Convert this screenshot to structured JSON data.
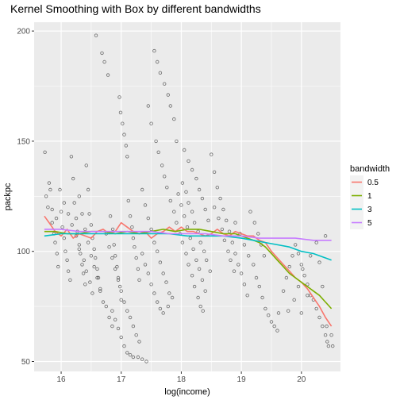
{
  "chart_data": {
    "type": "scatter",
    "title": "Kernel Smoothing with Box by different bandwidths",
    "xlabel": "log(income)",
    "ylabel": "packpc",
    "xlim": [
      15.55,
      20.65
    ],
    "ylim": [
      45.5,
      204
    ],
    "x_ticks": [
      "16",
      "17",
      "18",
      "19",
      "20"
    ],
    "x_tick_values": [
      16,
      17,
      18,
      19,
      20
    ],
    "y_ticks": [
      "50",
      "100",
      "150",
      "200"
    ],
    "y_tick_values": [
      50,
      100,
      150,
      200
    ],
    "grid": true,
    "legend": {
      "title": "bandwidth",
      "position": "right"
    },
    "points": [
      [
        15.73,
        145
      ],
      [
        15.75,
        125
      ],
      [
        15.78,
        120
      ],
      [
        15.8,
        131
      ],
      [
        15.82,
        128
      ],
      [
        15.85,
        113
      ],
      [
        15.88,
        108
      ],
      [
        15.9,
        104
      ],
      [
        15.93,
        99
      ],
      [
        15.95,
        93
      ],
      [
        15.98,
        128
      ],
      [
        16.0,
        118
      ],
      [
        16.02,
        111
      ],
      [
        16.05,
        106
      ],
      [
        16.07,
        100
      ],
      [
        16.1,
        96
      ],
      [
        16.12,
        91
      ],
      [
        16.15,
        87
      ],
      [
        16.17,
        143
      ],
      [
        16.2,
        133
      ],
      [
        16.22,
        122
      ],
      [
        16.25,
        115
      ],
      [
        16.27,
        109
      ],
      [
        16.3,
        103
      ],
      [
        16.32,
        99
      ],
      [
        16.35,
        94
      ],
      [
        16.37,
        90
      ],
      [
        16.4,
        85
      ],
      [
        16.42,
        139
      ],
      [
        16.45,
        128
      ],
      [
        16.47,
        117
      ],
      [
        16.5,
        112
      ],
      [
        16.52,
        106
      ],
      [
        16.55,
        101
      ],
      [
        16.57,
        97
      ],
      [
        16.6,
        92
      ],
      [
        16.62,
        88
      ],
      [
        16.65,
        83
      ],
      [
        16.58,
        198
      ],
      [
        16.68,
        190
      ],
      [
        16.72,
        186
      ],
      [
        16.78,
        180
      ],
      [
        16.82,
        116
      ],
      [
        16.86,
        110
      ],
      [
        16.88,
        103
      ],
      [
        16.9,
        98
      ],
      [
        16.93,
        93
      ],
      [
        16.95,
        88
      ],
      [
        16.98,
        84
      ],
      [
        17.0,
        78
      ],
      [
        16.97,
        170
      ],
      [
        16.99,
        163
      ],
      [
        17.02,
        158
      ],
      [
        17.05,
        153
      ],
      [
        17.08,
        148
      ],
      [
        17.1,
        143
      ],
      [
        17.12,
        123
      ],
      [
        17.15,
        116
      ],
      [
        17.18,
        111
      ],
      [
        17.2,
        106
      ],
      [
        17.22,
        102
      ],
      [
        17.25,
        97
      ],
      [
        17.28,
        92
      ],
      [
        17.3,
        87
      ],
      [
        16.85,
        73
      ],
      [
        16.9,
        69
      ],
      [
        16.95,
        65
      ],
      [
        17.0,
        61
      ],
      [
        17.05,
        57
      ],
      [
        17.1,
        54
      ],
      [
        17.15,
        53
      ],
      [
        17.2,
        52
      ],
      [
        17.28,
        52
      ],
      [
        17.35,
        51
      ],
      [
        17.42,
        50
      ],
      [
        16.75,
        75
      ],
      [
        16.8,
        70
      ],
      [
        16.85,
        66
      ],
      [
        17.35,
        128
      ],
      [
        17.4,
        121
      ],
      [
        17.45,
        115
      ],
      [
        17.5,
        110
      ],
      [
        17.55,
        104
      ],
      [
        17.6,
        100
      ],
      [
        17.65,
        95
      ],
      [
        17.7,
        90
      ],
      [
        17.75,
        86
      ],
      [
        17.8,
        81
      ],
      [
        17.55,
        191
      ],
      [
        17.6,
        186
      ],
      [
        17.65,
        181
      ],
      [
        17.72,
        176
      ],
      [
        17.78,
        171
      ],
      [
        17.82,
        166
      ],
      [
        17.88,
        160
      ],
      [
        17.92,
        150
      ],
      [
        17.95,
        126
      ],
      [
        18.0,
        121
      ],
      [
        18.05,
        116
      ],
      [
        18.1,
        111
      ],
      [
        18.15,
        106
      ],
      [
        18.2,
        101
      ],
      [
        18.25,
        96
      ],
      [
        18.3,
        92
      ],
      [
        18.35,
        87
      ],
      [
        18.4,
        82
      ],
      [
        18.02,
        131
      ],
      [
        18.08,
        127
      ],
      [
        18.12,
        122
      ],
      [
        18.18,
        118
      ],
      [
        18.22,
        113
      ],
      [
        18.28,
        109
      ],
      [
        18.32,
        104
      ],
      [
        18.38,
        100
      ],
      [
        18.42,
        96
      ],
      [
        18.48,
        91
      ],
      [
        18.5,
        144
      ],
      [
        18.55,
        136
      ],
      [
        18.6,
        129
      ],
      [
        18.65,
        124
      ],
      [
        18.7,
        119
      ],
      [
        18.75,
        114
      ],
      [
        18.8,
        109
      ],
      [
        18.85,
        104
      ],
      [
        18.9,
        99
      ],
      [
        18.95,
        94
      ],
      [
        19.0,
        90
      ],
      [
        19.05,
        85
      ],
      [
        19.1,
        80
      ],
      [
        18.9,
        113
      ],
      [
        18.98,
        108
      ],
      [
        19.05,
        103
      ],
      [
        19.12,
        98
      ],
      [
        19.2,
        94
      ],
      [
        19.25,
        88
      ],
      [
        19.3,
        84
      ],
      [
        19.35,
        79
      ],
      [
        19.4,
        74
      ],
      [
        19.45,
        71
      ],
      [
        19.5,
        68
      ],
      [
        19.55,
        66
      ],
      [
        19.6,
        64
      ],
      [
        19.62,
        72
      ],
      [
        19.7,
        82
      ],
      [
        19.75,
        88
      ],
      [
        19.8,
        93
      ],
      [
        19.85,
        98
      ],
      [
        19.9,
        103
      ],
      [
        19.95,
        99
      ],
      [
        20.0,
        94
      ],
      [
        20.05,
        89
      ],
      [
        20.1,
        85
      ],
      [
        20.15,
        80
      ],
      [
        20.2,
        78
      ],
      [
        20.25,
        74
      ],
      [
        20.3,
        70
      ],
      [
        20.35,
        66
      ],
      [
        20.4,
        62
      ],
      [
        20.43,
        59
      ],
      [
        20.45,
        57
      ],
      [
        20.0,
        72
      ],
      [
        20.1,
        80
      ],
      [
        20.3,
        95
      ],
      [
        20.4,
        107
      ],
      [
        20.5,
        62
      ],
      [
        20.52,
        57
      ],
      [
        19.78,
        73
      ],
      [
        19.88,
        78
      ],
      [
        19.95,
        84
      ],
      [
        20.02,
        92
      ],
      [
        20.15,
        98
      ],
      [
        20.25,
        104
      ],
      [
        20.35,
        84
      ],
      [
        20.42,
        66
      ],
      [
        19.15,
        118
      ],
      [
        19.22,
        113
      ],
      [
        19.28,
        108
      ],
      [
        19.33,
        103
      ],
      [
        19.38,
        98
      ],
      [
        17.45,
        166
      ],
      [
        17.5,
        158
      ],
      [
        17.58,
        150
      ],
      [
        17.62,
        145
      ],
      [
        17.68,
        139
      ],
      [
        17.72,
        134
      ],
      [
        17.76,
        129
      ],
      [
        16.3,
        125
      ],
      [
        16.35,
        117
      ],
      [
        16.4,
        110
      ],
      [
        16.45,
        104
      ],
      [
        16.5,
        98
      ],
      [
        16.55,
        93
      ],
      [
        16.6,
        88
      ],
      [
        16.65,
        82
      ],
      [
        16.7,
        77
      ],
      [
        16.75,
        108
      ],
      [
        16.8,
        102
      ],
      [
        16.85,
        97
      ],
      [
        16.9,
        92
      ],
      [
        16.95,
        87
      ],
      [
        17.0,
        82
      ],
      [
        17.05,
        77
      ],
      [
        17.1,
        73
      ],
      [
        17.15,
        70
      ],
      [
        17.2,
        66
      ],
      [
        17.25,
        62
      ],
      [
        17.3,
        59
      ],
      [
        15.85,
        119
      ],
      [
        15.92,
        115
      ],
      [
        16.05,
        122
      ],
      [
        16.12,
        117
      ],
      [
        16.18,
        112
      ],
      [
        16.25,
        107
      ],
      [
        16.3,
        101
      ],
      [
        16.38,
        96
      ],
      [
        16.42,
        91
      ],
      [
        16.48,
        86
      ],
      [
        16.52,
        81
      ],
      [
        18.05,
        146
      ],
      [
        18.12,
        141
      ],
      [
        18.18,
        137
      ],
      [
        18.25,
        133
      ],
      [
        18.3,
        128
      ],
      [
        18.35,
        124
      ],
      [
        18.4,
        119
      ],
      [
        18.45,
        114
      ],
      [
        18.55,
        120
      ],
      [
        18.62,
        115
      ],
      [
        18.68,
        110
      ],
      [
        18.72,
        105
      ],
      [
        18.78,
        100
      ],
      [
        18.82,
        96
      ],
      [
        18.88,
        91
      ],
      [
        17.82,
        123
      ],
      [
        17.88,
        118
      ],
      [
        17.92,
        113
      ],
      [
        17.98,
        108
      ],
      [
        18.02,
        104
      ],
      [
        18.08,
        99
      ],
      [
        18.12,
        94
      ],
      [
        18.18,
        89
      ],
      [
        18.22,
        84
      ],
      [
        18.28,
        79
      ],
      [
        18.32,
        75
      ],
      [
        18.36,
        73
      ],
      [
        17.35,
        99
      ],
      [
        17.4,
        94
      ],
      [
        17.45,
        90
      ],
      [
        17.5,
        85
      ],
      [
        17.55,
        81
      ],
      [
        17.6,
        77
      ],
      [
        17.65,
        74
      ],
      [
        17.7,
        72
      ],
      [
        17.78,
        75
      ],
      [
        17.85,
        79
      ]
    ],
    "series": [
      {
        "name": "0.5",
        "color": "#F8766D",
        "x": [
          15.72,
          15.8,
          15.9,
          16.0,
          16.1,
          16.2,
          16.3,
          16.4,
          16.5,
          16.6,
          16.7,
          16.8,
          16.9,
          17.0,
          17.1,
          17.2,
          17.3,
          17.4,
          17.5,
          17.6,
          17.7,
          17.8,
          17.9,
          18.0,
          18.1,
          18.2,
          18.3,
          18.4,
          18.5,
          18.6,
          18.7,
          18.8,
          18.9,
          19.0,
          19.1,
          19.2,
          19.3,
          19.4,
          19.5,
          19.6,
          19.7,
          19.8,
          19.9,
          20.0,
          20.1,
          20.2,
          20.3,
          20.4,
          20.5
        ],
        "y": [
          116,
          113,
          109,
          107,
          110,
          106,
          108,
          107,
          106,
          109,
          110,
          108,
          109,
          113,
          111,
          109,
          108,
          109,
          106,
          108,
          109,
          111,
          109,
          111,
          109,
          109,
          108,
          107,
          108,
          110,
          108,
          107,
          109,
          108,
          107,
          107,
          105,
          104,
          100,
          97,
          94,
          91,
          88,
          86,
          83,
          79,
          75,
          70,
          66
        ]
      },
      {
        "name": "1",
        "color": "#7CAE00",
        "x": [
          15.72,
          15.9,
          16.1,
          16.3,
          16.5,
          16.7,
          16.9,
          17.1,
          17.3,
          17.5,
          17.7,
          17.9,
          18.1,
          18.3,
          18.5,
          18.7,
          18.9,
          19.0,
          19.1,
          19.2,
          19.3,
          19.4,
          19.5,
          19.6,
          19.7,
          19.8,
          19.9,
          20.0,
          20.1,
          20.2,
          20.3,
          20.4,
          20.5
        ],
        "y": [
          109,
          109,
          108,
          108,
          109,
          109,
          108,
          109,
          108,
          109,
          110,
          109,
          110,
          110,
          109,
          108,
          108,
          107,
          106,
          105,
          104,
          102,
          99,
          96,
          93,
          90,
          88,
          86,
          84,
          82,
          80,
          77,
          74
        ]
      },
      {
        "name": "3",
        "color": "#00BFC4",
        "x": [
          15.72,
          16.0,
          16.3,
          16.6,
          16.9,
          17.2,
          17.5,
          17.8,
          18.1,
          18.4,
          18.7,
          19.0,
          19.2,
          19.4,
          19.6,
          19.8,
          20.0,
          20.2,
          20.4,
          20.5
        ],
        "y": [
          107,
          108,
          108,
          108,
          108,
          108,
          108,
          108,
          107,
          107,
          107,
          106,
          105,
          104,
          103,
          102,
          100,
          99,
          97,
          96
        ]
      },
      {
        "name": "5",
        "color": "#C77CFF",
        "x": [
          15.72,
          16.0,
          16.3,
          16.6,
          16.9,
          17.2,
          17.5,
          17.8,
          18.1,
          18.4,
          18.7,
          19.0,
          19.3,
          19.6,
          19.9,
          20.2,
          20.5
        ],
        "y": [
          110,
          110,
          109,
          109,
          109,
          109,
          109,
          108,
          108,
          108,
          107,
          107,
          106,
          106,
          106,
          105,
          105
        ]
      }
    ]
  }
}
